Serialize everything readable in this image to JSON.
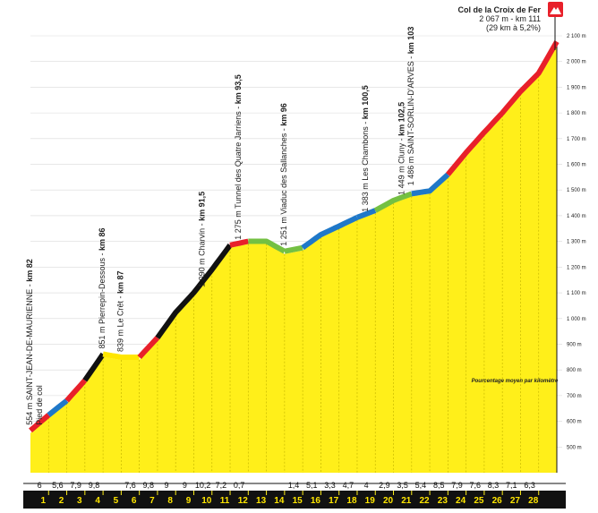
{
  "chart_data": {
    "type": "area",
    "ylim": [
      400,
      2100
    ],
    "xlim": [
      0,
      29
    ],
    "yticks": [
      500,
      600,
      700,
      800,
      900,
      "1 000",
      "1 100",
      "1 200",
      "1 300",
      "1 400",
      "1 500",
      "1 600",
      "1 700",
      "1 800",
      "1 900",
      "2 000",
      "2 100"
    ],
    "km_labels": [
      "1",
      "2",
      "3",
      "4",
      "5",
      "6",
      "7",
      "8",
      "9",
      "10",
      "11",
      "12",
      "13",
      "14",
      "15",
      "16",
      "17",
      "18",
      "19",
      "20",
      "21",
      "22",
      "23",
      "24",
      "25",
      "26",
      "27",
      "28"
    ],
    "gradients": [
      "6",
      "5,6",
      "7,9",
      "9,8",
      "",
      "7,6",
      "9,8",
      "9",
      "9",
      "10,2",
      "7,2",
      "0,7",
      "",
      "",
      "1,4",
      "5,1",
      "3,3",
      "4,7",
      "4",
      "2,9",
      "3,5",
      "5,4",
      "8,5",
      "7,9",
      "7,6",
      "8,3",
      "7,1",
      "6,3"
    ],
    "profile": [
      {
        "x": 0,
        "y": 554
      },
      {
        "x": 1,
        "y": 614
      },
      {
        "x": 2,
        "y": 670
      },
      {
        "x": 3,
        "y": 749
      },
      {
        "x": 4,
        "y": 851
      },
      {
        "x": 5,
        "y": 839
      },
      {
        "x": 6,
        "y": 839
      },
      {
        "x": 7,
        "y": 915
      },
      {
        "x": 8,
        "y": 1013
      },
      {
        "x": 9,
        "y": 1090
      },
      {
        "x": 10,
        "y": 1180
      },
      {
        "x": 11,
        "y": 1275
      },
      {
        "x": 12,
        "y": 1290
      },
      {
        "x": 13,
        "y": 1290
      },
      {
        "x": 14,
        "y": 1251
      },
      {
        "x": 15,
        "y": 1265
      },
      {
        "x": 16,
        "y": 1316
      },
      {
        "x": 17,
        "y": 1349
      },
      {
        "x": 18,
        "y": 1383
      },
      {
        "x": 19,
        "y": 1410
      },
      {
        "x": 20,
        "y": 1449
      },
      {
        "x": 21,
        "y": 1475
      },
      {
        "x": 22,
        "y": 1486
      },
      {
        "x": 23,
        "y": 1550
      },
      {
        "x": 24,
        "y": 1635
      },
      {
        "x": 25,
        "y": 1714
      },
      {
        "x": 26,
        "y": 1790
      },
      {
        "x": 27,
        "y": 1873
      },
      {
        "x": 28,
        "y": 1944
      },
      {
        "x": 29,
        "y": 2067
      }
    ],
    "road_segments": [
      {
        "from": 0,
        "to": 1,
        "color": "#e8202a"
      },
      {
        "from": 1,
        "to": 2,
        "color": "#1f78c8"
      },
      {
        "from": 2,
        "to": 3,
        "color": "#e8202a"
      },
      {
        "from": 3,
        "to": 4,
        "color": "#111111"
      },
      {
        "from": 4,
        "to": 6,
        "color": "#ffe600"
      },
      {
        "from": 6,
        "to": 7,
        "color": "#e8202a"
      },
      {
        "from": 7,
        "to": 11,
        "color": "#111111"
      },
      {
        "from": 11,
        "to": 12,
        "color": "#e8202a"
      },
      {
        "from": 12,
        "to": 14,
        "color": "#74c043"
      },
      {
        "from": 14,
        "to": 15,
        "color": "#74c043"
      },
      {
        "from": 15,
        "to": 18,
        "color": "#1f78c8"
      },
      {
        "from": 18,
        "to": 19,
        "color": "#1f78c8"
      },
      {
        "from": 19,
        "to": 21,
        "color": "#74c043"
      },
      {
        "from": 21,
        "to": 23,
        "color": "#1f78c8"
      },
      {
        "from": 23,
        "to": 29,
        "color": "#e8202a"
      }
    ],
    "waypoints": [
      {
        "x": 0,
        "alt": 554,
        "text": "554 m SAINT-JEAN-DE-MAURIENNE - ",
        "km": "km 82",
        "sub": "Pied de col"
      },
      {
        "x": 4,
        "alt": 851,
        "text": "851 m Pierrepin-Dessous - ",
        "km": "km 86",
        "sub": ""
      },
      {
        "x": 5,
        "alt": 839,
        "text": "839 m Le Crêt - ",
        "km": "km 87",
        "sub": ""
      },
      {
        "x": 9.5,
        "alt": 1090,
        "text": "1 090 m Charvin - ",
        "km": "km 91,5",
        "sub": ""
      },
      {
        "x": 11.5,
        "alt": 1275,
        "text": "1 275 m Tunnel des Quatre Jarriens - ",
        "km": "km 93,5",
        "sub": ""
      },
      {
        "x": 14,
        "alt": 1251,
        "text": "1 251 m Viaduc des Sallanches - ",
        "km": "km 96",
        "sub": ""
      },
      {
        "x": 18.5,
        "alt": 1383,
        "text": "1 383 m Les Chambons - ",
        "km": "km 100,5",
        "sub": ""
      },
      {
        "x": 20.5,
        "alt": 1449,
        "text": "1 449 m Cluny - ",
        "km": "km 102,5",
        "sub": ""
      },
      {
        "x": 21,
        "alt": 1486,
        "text": "1 486 m SAINT-SORLIN-D'ARVES - ",
        "km": "km 103",
        "sub": ""
      }
    ],
    "summit": {
      "name": "Col de la Croix de Fer",
      "info1": "2 067 m - km 111",
      "info2": "(29 km à 5,2%)"
    },
    "note": "Pourcentage moyen par kilomètre",
    "colors": {
      "fill": "#ffef1a",
      "band": "#111111",
      "flag": "#e8202a"
    }
  }
}
